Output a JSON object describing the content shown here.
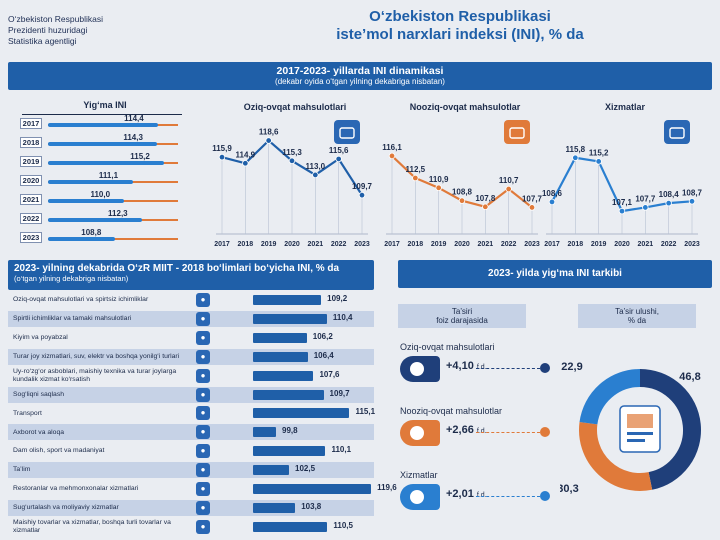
{
  "header": {
    "org_line1": "O‘zbekiston Respublikasi",
    "org_line2": "Prezidenti huzuridagi",
    "org_line3": "Statistika agentligi",
    "title_line1": "O‘zbekiston Respublikasi",
    "title_line2": "iste’mol narxlari indeksi (INI), % da"
  },
  "section1": {
    "title": "2017-2023- yillarda INI dinamikasi",
    "subtitle": "(dekabr oyida o‘tgan yilning dekabriga nisbatan)"
  },
  "section2": {
    "title": "2023- yilning dekabrida O‘zR MIIT - 2018 bo‘limlari bo‘yicha INI, % da",
    "subtitle": "(o‘tgan yilning dekabriga nisbatan)"
  },
  "section3": {
    "title": "2023- yilda yig‘ma INI tarkibi",
    "col1_line1": "Ta’siri",
    "col1_line2": "foiz darajasida",
    "col2_line1": "Ta’sir ulushi,",
    "col2_line2": "% da"
  },
  "colors": {
    "primary": "#1f5fa8",
    "orange": "#e07a3a",
    "light_blue": "#c6d2e6",
    "dark_blue": "#1f3f7a"
  },
  "chart_data": [
    {
      "type": "bar",
      "title": "Yig‘ma INI",
      "categories": [
        "2017",
        "2018",
        "2019",
        "2020",
        "2021",
        "2022",
        "2023"
      ],
      "values": [
        114.4,
        114.3,
        115.2,
        111.1,
        110.0,
        112.3,
        108.8
      ],
      "value_labels": [
        "114,4",
        "114,3",
        "115,2",
        "111,1",
        "110,0",
        "112,3",
        "108,8"
      ]
    },
    {
      "type": "line",
      "title": "Oziq-ovqat mahsulotlari",
      "x": [
        "2017",
        "2018",
        "2019",
        "2020",
        "2021",
        "2022",
        "2023"
      ],
      "values": [
        115.9,
        114.9,
        118.6,
        115.3,
        113.0,
        115.6,
        109.7
      ],
      "value_labels": [
        "115,9",
        "114,9",
        "118,6",
        "115,3",
        "113,0",
        "115,6",
        "109,7"
      ],
      "color": "#1f5fa8",
      "icon": "food-basket-icon"
    },
    {
      "type": "line",
      "title": "Nooziq-ovqat mahsulotlar",
      "x": [
        "2017",
        "2018",
        "2019",
        "2020",
        "2021",
        "2022",
        "2023"
      ],
      "values": [
        116.1,
        112.5,
        110.9,
        108.8,
        107.8,
        110.7,
        107.7
      ],
      "value_labels": [
        "116,1",
        "112,5",
        "110,9",
        "108,8",
        "107,8",
        "110,7",
        "107,7"
      ],
      "color": "#e07a3a",
      "icon": "shopping-bag-icon"
    },
    {
      "type": "line",
      "title": "Xizmatlar",
      "x": [
        "2017",
        "2018",
        "2019",
        "2020",
        "2021",
        "2022",
        "2023"
      ],
      "values": [
        108.6,
        115.8,
        115.2,
        107.1,
        107.7,
        108.4,
        108.7
      ],
      "value_labels": [
        "108,6",
        "115,8",
        "115,2",
        "107,1",
        "107,7",
        "108,4",
        "108,7"
      ],
      "color": "#2a7fd0",
      "icon": "tools-icon"
    },
    {
      "type": "bar",
      "orientation": "horizontal",
      "categories": [
        "Oziq-ovqat mahsulotlari va spirtsiz ichimliklar",
        "Spirtli ichimliklar va tamaki mahsulotlari",
        "Kiyim va poyabzal",
        "Turar joy xizmatlari, suv, elektr va boshqa yonilg‘i turlari",
        "Uy-ro‘zg‘or asboblari, maishiy texnika va turar joylarga kundalik xizmat ko‘rsatish",
        "Sog‘liqni saqlash",
        "Transport",
        "Axborot va aloqa",
        "Dam olish, sport va madaniyat",
        "Ta’lim",
        "Restoranlar va mehmonxonalar xizmatlari",
        "Sug‘urtalash va moliyaviy xizmatlar",
        "Maishiy tovarlar va xizmatlar, boshqa turli tovarlar va xizmatlar"
      ],
      "values": [
        109.2,
        110.4,
        106.2,
        106.4,
        107.6,
        109.7,
        115.1,
        99.8,
        110.1,
        102.5,
        119.6,
        103.8,
        110.5
      ],
      "value_labels": [
        "109,2",
        "110,4",
        "106,2",
        "106,4",
        "107,6",
        "109,7",
        "115,1",
        "99,8",
        "110,1",
        "102,5",
        "119,6",
        "103,8",
        "110,5"
      ],
      "icons": [
        "fruit-icon",
        "bottle-icon",
        "shirt-icon",
        "house-icon",
        "appliance-icon",
        "heart-icon",
        "bus-icon",
        "phone-icon",
        "sport-icon",
        "education-icon",
        "dish-icon",
        "shield-icon",
        "goods-icon"
      ]
    },
    {
      "type": "pie",
      "categories": [
        "Oziq-ovqat mahsulotlari",
        "Nooziq-ovqat mahsulotlar",
        "Xizmatlar"
      ],
      "contribution_labels": [
        "+4,10",
        "+2,66",
        "+2,01"
      ],
      "contribution_unit": "f.d.",
      "values": [
        46.8,
        30.3,
        22.9
      ],
      "value_labels": [
        "46,8",
        "30,3",
        "22,9"
      ],
      "colors": [
        "#1f3f7a",
        "#e07a3a",
        "#2a7fd0"
      ]
    }
  ]
}
